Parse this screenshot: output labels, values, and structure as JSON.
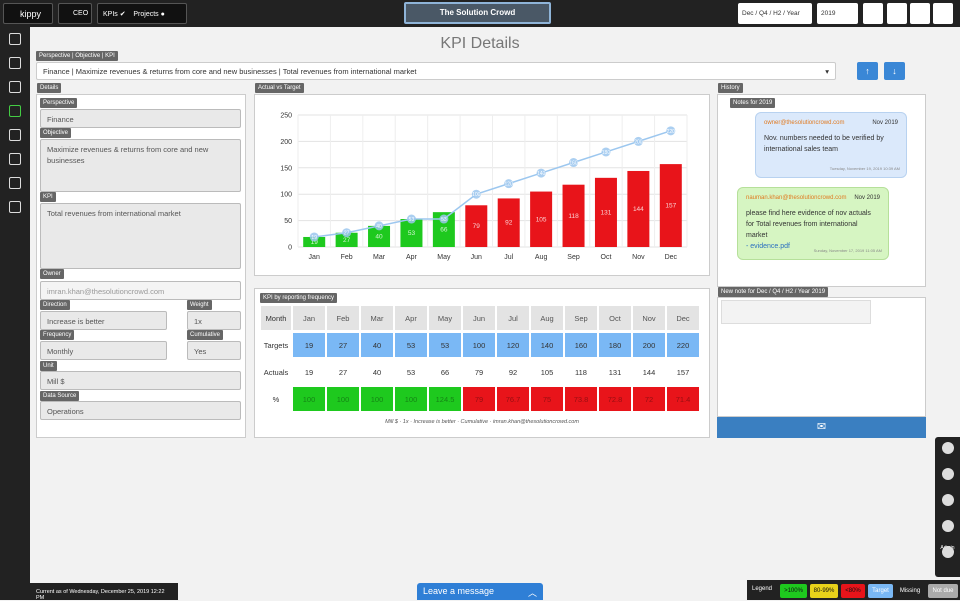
{
  "topbar": {
    "logo": "kippy",
    "ceo": "CEO",
    "kpis": "KPIs",
    "projects": "Projects",
    "org": "The Solution Crowd",
    "period": "Dec / Q4 / H2 / Year",
    "year": "2019"
  },
  "title": "KPI Details",
  "selector": {
    "label": "Perspective | Objective | KPI",
    "value": "Finance | Maximize revenues & returns from core and new businesses | Total revenues from international market"
  },
  "details": {
    "label": "Details",
    "fields": [
      {
        "label": "Perspective",
        "value": "Finance"
      },
      {
        "label": "Objective",
        "value": "Maximize revenues & returns from core and new businesses"
      },
      {
        "label": "KPI",
        "value": "Total revenues from international market"
      },
      {
        "label": "Owner",
        "value": "imran.khan@thesolutioncrowd.com"
      },
      {
        "label": "Direction",
        "value": "Increase is better"
      },
      {
        "label": "Weight",
        "value": "1x"
      },
      {
        "label": "Frequency",
        "value": "Monthly"
      },
      {
        "label": "Cumulative",
        "value": "Yes"
      },
      {
        "label": "Unit",
        "value": "Mill $"
      },
      {
        "label": "Data Source",
        "value": "Operations"
      }
    ]
  },
  "chart_data": {
    "type": "bar",
    "title": "Actual vs Target",
    "categories": [
      "Jan",
      "Feb",
      "Mar",
      "Apr",
      "May",
      "Jun",
      "Jul",
      "Aug",
      "Sep",
      "Oct",
      "Nov",
      "Dec"
    ],
    "series": [
      {
        "name": "Targets",
        "type": "line",
        "color": "#9cc7ef",
        "values": [
          19,
          27,
          40,
          53,
          53,
          100,
          120,
          140,
          160,
          180,
          200,
          220
        ]
      },
      {
        "name": "Actuals",
        "type": "bar",
        "colors": [
          "#1ec91e",
          "#1ec91e",
          "#1ec91e",
          "#1ec91e",
          "#1ec91e",
          "#e8141a",
          "#e8141a",
          "#e8141a",
          "#e8141a",
          "#e8141a",
          "#e8141a",
          "#e8141a"
        ],
        "values": [
          19,
          27,
          40,
          53,
          66,
          79,
          92,
          105,
          118,
          131,
          144,
          157
        ]
      }
    ],
    "ylim": [
      0,
      250
    ],
    "yticks": [
      0,
      50,
      100,
      150,
      200,
      250
    ],
    "grid": true
  },
  "table": {
    "title": "KPI by reporting frequency",
    "header": "Month",
    "rows": [
      "Targets",
      "Actuals",
      "%"
    ],
    "percent": [
      100,
      100,
      100,
      100,
      124.5,
      79,
      76.7,
      75,
      73.8,
      72.8,
      72,
      71.4
    ],
    "note": "Mill $ · 1x · Increase is better · Cumulative · imran.khan@thesolutioncrowd.com"
  },
  "history": {
    "label": "History",
    "notes_label": "Notes for 2019",
    "notes": [
      {
        "author": "owner@thesolutioncrowd.com",
        "date": "Nov 2019",
        "text": "Nov. numbers needed to be verified by international sales team",
        "stamp": "Tuesday, November 19, 2019 10:39 AM"
      },
      {
        "author": "nauman.khan@thesolutioncrowd.com",
        "date": "Nov 2019",
        "text": "please find here evidence of nov actuals for Total revenues from international market",
        "link": "- evidence.pdf",
        "stamp": "Sunday, November 17, 2019 11:05 AM"
      }
    ],
    "new_note": "New note for Dec / Q4 / H2 / Year 2019"
  },
  "status": {
    "current": "Current as of Wednesday, December 25, 2019 12:22 PM",
    "message": "Leave a message",
    "admin": "Admin"
  },
  "legend": {
    "label": "Legend",
    "items": [
      ">100%",
      "80-99%",
      "<80%",
      "Target",
      "Missing",
      "Not due"
    ]
  }
}
